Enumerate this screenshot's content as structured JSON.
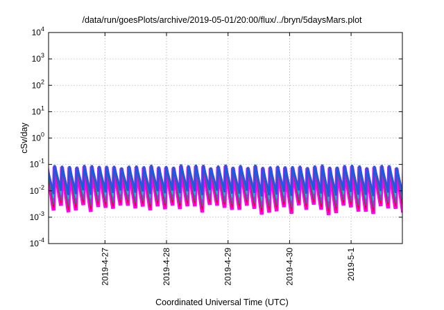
{
  "chart_data": {
    "type": "area",
    "title": "/data/run/goesPlots/archive/2019-05-01/20:00/flux/../bryn/5daysMars.plot",
    "xlabel": "Coordinated Universal Time (UTC)",
    "ylabel": "cSv/day",
    "yscale": "log",
    "ylim": [
      0.0001,
      10000
    ],
    "yticks": [
      {
        "base": "10",
        "exp": "-4"
      },
      {
        "base": "10",
        "exp": "-3"
      },
      {
        "base": "10",
        "exp": "-2"
      },
      {
        "base": "10",
        "exp": "-1"
      },
      {
        "base": "10",
        "exp": "0"
      },
      {
        "base": "10",
        "exp": "1"
      },
      {
        "base": "10",
        "exp": "2"
      },
      {
        "base": "10",
        "exp": "3"
      },
      {
        "base": "10",
        "exp": "4"
      }
    ],
    "xlim": [
      "2019-04-26 02:00",
      "2019-05-01 20:00"
    ],
    "xticks": [
      "2019-4-27",
      "2019-4-28",
      "2019-4-29",
      "2019-4-30",
      "2019-5-1"
    ],
    "grid": true,
    "cycle_hours": 2.9,
    "envelope": {
      "peak_value": 0.1,
      "peak_min_value": 0.05,
      "trough_min_value": 0.0012,
      "trough_max_value": 0.006
    },
    "series": [
      {
        "color": "#ff00ff",
        "level": 0.0
      },
      {
        "color": "#ee0000",
        "level": 0.12
      },
      {
        "color": "#1a8a5a",
        "level": 0.35
      },
      {
        "color": "#5a5ad8",
        "level": 0.55
      },
      {
        "color": "#00c8c8",
        "level": 0.75
      },
      {
        "color": "#1e5adc",
        "level": 1.0
      }
    ]
  }
}
